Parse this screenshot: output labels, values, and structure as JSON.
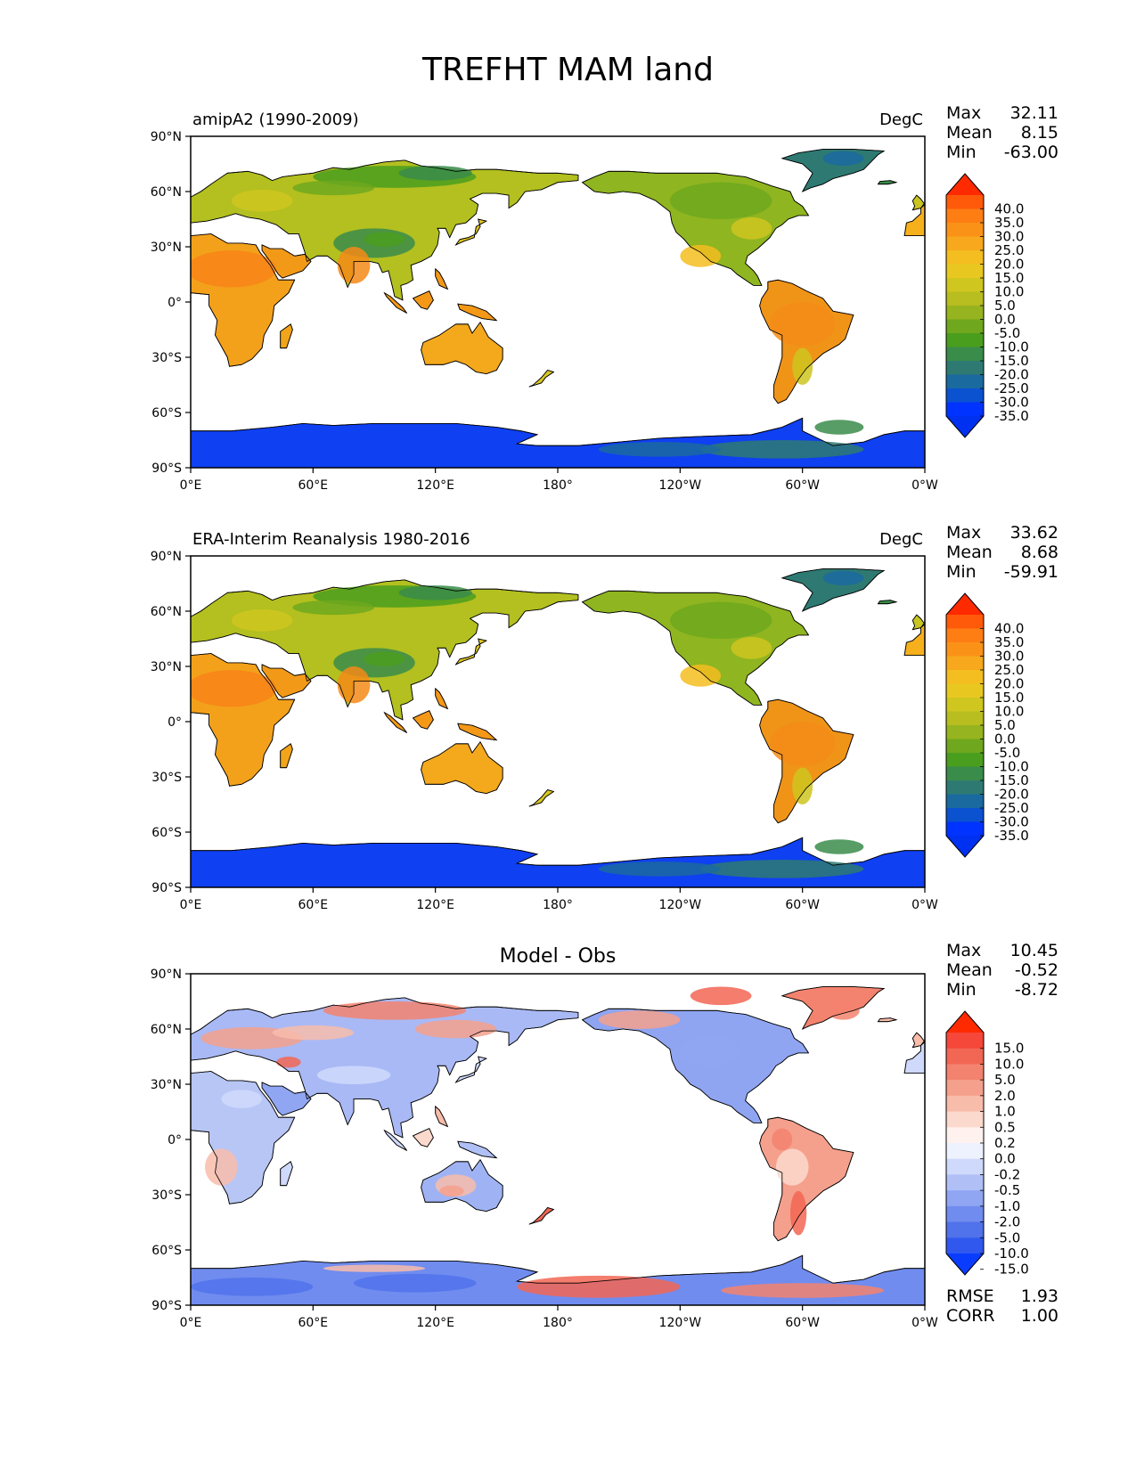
{
  "figure_title": "TREFHT MAM land",
  "lat_labels": [
    "90°N",
    "60°N",
    "30°N",
    "0°",
    "30°S",
    "60°S",
    "90°S"
  ],
  "lon_labels": [
    "0°E",
    "60°E",
    "120°E",
    "180°",
    "120°W",
    "60°W",
    "0°W"
  ],
  "panels": [
    {
      "id": "model",
      "title_left": "amipA2 (1990-2009)",
      "title_center": "",
      "units": "DegC",
      "stats": [
        {
          "label": "Max",
          "value": "32.11"
        },
        {
          "label": "Mean",
          "value": "8.15"
        },
        {
          "label": "Min",
          "value": "-63.00"
        }
      ],
      "colorbar": {
        "labels": [
          "40.0",
          "35.0",
          "30.0",
          "25.0",
          "20.0",
          "15.0",
          "10.0",
          "5.0",
          "0.0",
          "-5.0",
          "-10.0",
          "-15.0",
          "-20.0",
          "-25.0",
          "-30.0",
          "-35.0"
        ],
        "colors": [
          "#ff2a00",
          "#ff5a0a",
          "#ff7e14",
          "#fb9218",
          "#f7a81c",
          "#f4bd20",
          "#e8c820",
          "#cfc620",
          "#b8bd20",
          "#96b41f",
          "#6fa81e",
          "#4a9e1e",
          "#3a8c4a",
          "#2e7a72",
          "#1a6aa0",
          "#0a52d0",
          "#0033ff",
          "#0030f0"
        ]
      },
      "footer_stats": []
    },
    {
      "id": "obs",
      "title_left": "ERA-Interim Reanalysis 1980-2016",
      "title_center": "",
      "units": "DegC",
      "stats": [
        {
          "label": "Max",
          "value": "33.62"
        },
        {
          "label": "Mean",
          "value": "8.68"
        },
        {
          "label": "Min",
          "value": "-59.91"
        }
      ],
      "colorbar": {
        "labels": [
          "40.0",
          "35.0",
          "30.0",
          "25.0",
          "20.0",
          "15.0",
          "10.0",
          "5.0",
          "0.0",
          "-5.0",
          "-10.0",
          "-15.0",
          "-20.0",
          "-25.0",
          "-30.0",
          "-35.0"
        ],
        "colors": [
          "#ff2a00",
          "#ff5a0a",
          "#ff7e14",
          "#fb9218",
          "#f7a81c",
          "#f4bd20",
          "#e8c820",
          "#cfc620",
          "#b8bd20",
          "#96b41f",
          "#6fa81e",
          "#4a9e1e",
          "#3a8c4a",
          "#2e7a72",
          "#1a6aa0",
          "#0a52d0",
          "#0033ff",
          "#0030f0"
        ]
      },
      "footer_stats": []
    },
    {
      "id": "diff",
      "title_left": "",
      "title_center": "Model - Obs",
      "units": "",
      "stats": [
        {
          "label": "Max",
          "value": "10.45"
        },
        {
          "label": "Mean",
          "value": "-0.52"
        },
        {
          "label": "Min",
          "value": "-8.72"
        }
      ],
      "colorbar": {
        "labels": [
          "15.0",
          "10.0",
          "5.0",
          "2.0",
          "1.0",
          "0.5",
          "0.2",
          "0.0",
          "-0.2",
          "-0.5",
          "-1.0",
          "-2.0",
          "-5.0",
          "-10.0",
          "-15.0"
        ],
        "colors": [
          "#ff2a00",
          "#f5473a",
          "#f26654",
          "#f3836e",
          "#f5a08c",
          "#f8bcaa",
          "#fbd9cc",
          "#fff2ee",
          "#eef2ff",
          "#cfd9fb",
          "#b0c0f7",
          "#90a6f3",
          "#708cef",
          "#5072eb",
          "#3058ef",
          "#0a3cff"
        ]
      },
      "footer_stats": [
        {
          "label": "RMSE",
          "value": "1.93"
        },
        {
          "label": "CORR",
          "value": "1.00"
        }
      ]
    }
  ]
}
